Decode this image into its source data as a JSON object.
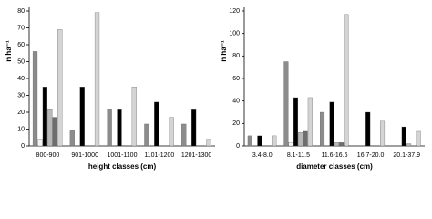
{
  "chart_data": [
    {
      "type": "bar",
      "ylabel": "n ha⁻¹",
      "xlabel": "height classes (cm)",
      "categories": [
        "800-900",
        "901-1000",
        "1001-1100",
        "1101-1200",
        "1201-1300"
      ],
      "ylim": [
        0,
        80
      ],
      "yticks": [
        0,
        10,
        20,
        30,
        40,
        50,
        60,
        70,
        80
      ],
      "series": [
        {
          "color": "#8c8c8c",
          "values": [
            56,
            9,
            22,
            13,
            13
          ]
        },
        {
          "color": "#f4f4f4",
          "values": [
            4,
            0,
            0,
            0,
            0
          ]
        },
        {
          "color": "#000000",
          "values": [
            35,
            35,
            22,
            26,
            22
          ]
        },
        {
          "color": "#b8b8b8",
          "values": [
            22,
            0,
            0,
            0,
            0
          ]
        },
        {
          "color": "#6e6e6e",
          "values": [
            17,
            0,
            0,
            0,
            0
          ]
        },
        {
          "color": "#d4d4d4",
          "values": [
            69,
            79,
            35,
            17,
            4
          ]
        }
      ]
    },
    {
      "type": "bar",
      "ylabel": "n ha⁻¹",
      "xlabel": "diameter classes (cm)",
      "categories": [
        "3.4-8.0",
        "8.1-11.5",
        "11.6-16.6",
        "16.7-20.0",
        "20.1-37.9"
      ],
      "ylim": [
        0,
        120
      ],
      "yticks": [
        0,
        20,
        40,
        60,
        80,
        100,
        120
      ],
      "series": [
        {
          "color": "#8c8c8c",
          "values": [
            9,
            75,
            30,
            0,
            0
          ]
        },
        {
          "color": "#f4f4f4",
          "values": [
            0,
            3,
            0,
            0,
            0
          ]
        },
        {
          "color": "#000000",
          "values": [
            9,
            43,
            39,
            30,
            17
          ]
        },
        {
          "color": "#b8b8b8",
          "values": [
            0,
            12,
            3,
            0,
            2
          ]
        },
        {
          "color": "#6e6e6e",
          "values": [
            0,
            13,
            3,
            0,
            0
          ]
        },
        {
          "color": "#d4d4d4",
          "values": [
            9,
            43,
            117,
            22,
            13
          ]
        }
      ]
    }
  ]
}
